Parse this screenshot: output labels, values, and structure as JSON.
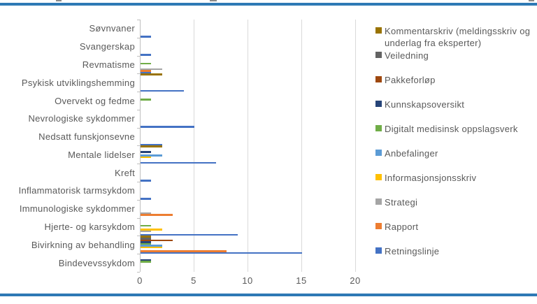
{
  "page": {
    "background": "#ffffff",
    "top_rule_color": "#2e79b5",
    "bottom_rule_color": "#2e79b5"
  },
  "axis": {
    "tick_labels": [
      "0",
      "5",
      "10",
      "15",
      "20"
    ]
  },
  "chart_data": {
    "type": "bar",
    "orientation": "horizontal",
    "title": "",
    "xlabel": "",
    "ylabel": "",
    "xlim": [
      0,
      20
    ],
    "x_ticks": [
      0,
      5,
      10,
      15,
      20
    ],
    "grid": true,
    "legend_position": "right",
    "categories": [
      "Søvnvaner",
      "Svangerskap",
      "Revmatisme",
      "Psykisk utviklingshemming",
      "Overvekt og fedme",
      "Nevrologiske sykdommer",
      "Nedsatt funskjonsevne",
      "Mentale lidelser",
      "Kreft",
      "Inflammatorisk tarmsykdom",
      "Immunologiske sykdommer",
      "Hjerte- og karsykdom",
      "Bivirkning av behandling",
      "Bindevevssykdom"
    ],
    "series": [
      {
        "name": "Kommentarskriv (meldingsskriv og underlag fra eksperter)",
        "color": "#997300",
        "values": [
          0,
          0,
          0,
          2,
          0,
          0,
          0,
          2,
          0,
          0,
          0,
          0,
          1,
          0
        ]
      },
      {
        "name": "Veiledning",
        "color": "#636363",
        "values": [
          0,
          0,
          0,
          0,
          0,
          0,
          0,
          0,
          0,
          0,
          0,
          0,
          1,
          0
        ]
      },
      {
        "name": "Pakkeforløp",
        "color": "#9e480e",
        "values": [
          0,
          0,
          0,
          0,
          0,
          0,
          0,
          0,
          0,
          0,
          0,
          0,
          3,
          0
        ]
      },
      {
        "name": "Kunnskapsoversikt",
        "color": "#264478",
        "values": [
          0,
          0,
          0,
          0,
          0,
          0,
          0,
          1,
          0,
          0,
          0,
          0,
          1,
          1
        ]
      },
      {
        "name": "Digitalt medisinsk oppslagsverk",
        "color": "#70ad47",
        "values": [
          0,
          0,
          1,
          0,
          1,
          0,
          0,
          0,
          0,
          0,
          0,
          1,
          1,
          1
        ]
      },
      {
        "name": "Anbefalinger",
        "color": "#5b9bd5",
        "values": [
          0,
          0,
          0,
          0,
          0,
          0,
          0,
          2,
          0,
          0,
          0,
          0,
          2,
          0
        ]
      },
      {
        "name": "Informasjonsjonsskriv",
        "color": "#ffc000",
        "values": [
          0,
          0,
          0,
          0,
          0,
          0,
          0,
          1,
          0,
          0,
          0,
          2,
          2,
          0
        ]
      },
      {
        "name": "Strategi",
        "color": "#a5a5a5",
        "values": [
          0,
          0,
          2,
          0,
          0,
          0,
          0,
          0,
          0,
          0,
          1,
          1,
          0,
          0
        ]
      },
      {
        "name": "Rapport",
        "color": "#ed7d31",
        "values": [
          0,
          0,
          1,
          0,
          0,
          0,
          0,
          0,
          0,
          0,
          3,
          0,
          8,
          0
        ]
      },
      {
        "name": "Retningslinje",
        "color": "#4472c4",
        "values": [
          1,
          1,
          1,
          4,
          0,
          5,
          2,
          7,
          1,
          1,
          0,
          9,
          15,
          0
        ]
      }
    ]
  },
  "legend": {
    "items": [
      {
        "label": "Kommentarskriv (meldingsskriv og underlag fra eksperter)",
        "color": "#997300"
      },
      {
        "label": "Veiledning",
        "color": "#636363"
      },
      {
        "label": "Pakkeforløp",
        "color": "#9e480e"
      },
      {
        "label": "Kunnskapsoversikt",
        "color": "#264478"
      },
      {
        "label": "Digitalt medisinsk oppslagsverk",
        "color": "#70ad47"
      },
      {
        "label": "Anbefalinger",
        "color": "#5b9bd5"
      },
      {
        "label": "Informasjonsjonsskriv",
        "color": "#ffc000"
      },
      {
        "label": "Strategi",
        "color": "#a5a5a5"
      },
      {
        "label": "Rapport",
        "color": "#ed7d31"
      },
      {
        "label": "Retningslinje",
        "color": "#4472c4"
      }
    ]
  }
}
